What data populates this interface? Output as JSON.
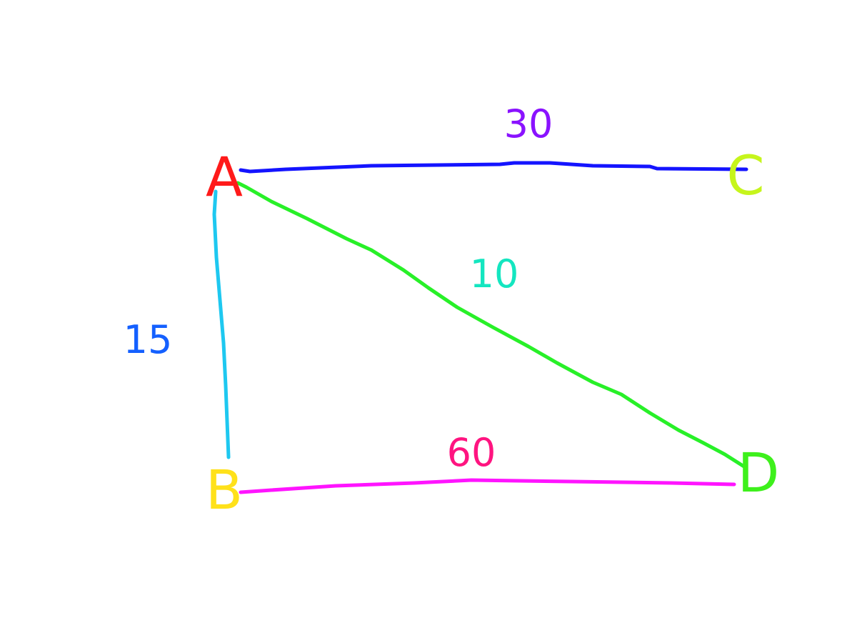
{
  "nodes": [
    {
      "id": "A",
      "label": "A",
      "color": "#ff1a1a"
    },
    {
      "id": "B",
      "label": "B",
      "color": "#ffe11a"
    },
    {
      "id": "C",
      "label": "C",
      "color": "#c6f51c"
    },
    {
      "id": "D",
      "label": "D",
      "color": "#3ef01c"
    }
  ],
  "edges": [
    {
      "from": "A",
      "to": "C",
      "weight": "30",
      "line_color": "#1414ff",
      "label_color": "#8a12ff"
    },
    {
      "from": "A",
      "to": "B",
      "weight": "15",
      "line_color": "#1ec8f0",
      "label_color": "#1460ff"
    },
    {
      "from": "A",
      "to": "D",
      "weight": "10",
      "line_color": "#28f028",
      "label_color": "#14e6c0"
    },
    {
      "from": "B",
      "to": "D",
      "weight": "60",
      "line_color": "#ff14ff",
      "label_color": "#ff1480"
    }
  ]
}
